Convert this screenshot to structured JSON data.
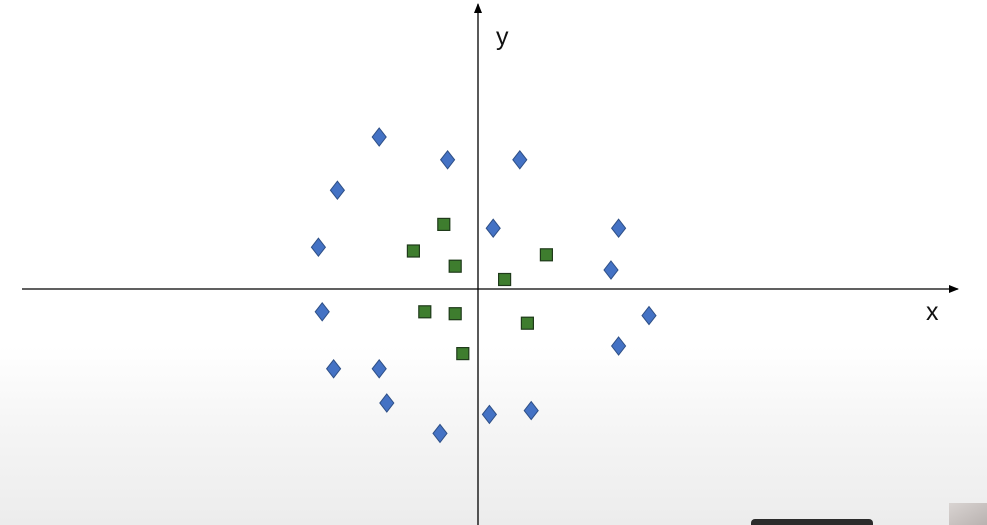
{
  "chart_data": {
    "type": "scatter",
    "title": "",
    "xlabel": "x",
    "ylabel": "y",
    "xlim": [
      -11.8,
      12.3
    ],
    "ylim": [
      -6.0,
      7.5
    ],
    "grid": false,
    "legend": "none",
    "series": [
      {
        "marker": "diamond",
        "color": "#4472C4",
        "points": [
          [
            -2.6,
            4.0
          ],
          [
            -0.8,
            3.4
          ],
          [
            1.1,
            3.4
          ],
          [
            -3.7,
            2.6
          ],
          [
            -4.2,
            1.1
          ],
          [
            0.4,
            1.6
          ],
          [
            3.7,
            1.6
          ],
          [
            3.5,
            0.5
          ],
          [
            -4.1,
            -0.6
          ],
          [
            4.5,
            -0.7
          ],
          [
            3.7,
            -1.5
          ],
          [
            -3.8,
            -2.1
          ],
          [
            -2.6,
            -2.1
          ],
          [
            -2.4,
            -3.0
          ],
          [
            0.3,
            -3.3
          ],
          [
            1.4,
            -3.2
          ],
          [
            -1.0,
            -3.8
          ]
        ]
      },
      {
        "marker": "square",
        "color": "#3E7D2E",
        "points": [
          [
            -0.9,
            1.7
          ],
          [
            -1.7,
            1.0
          ],
          [
            -0.6,
            0.6
          ],
          [
            1.8,
            0.9
          ],
          [
            0.7,
            0.25
          ],
          [
            -1.4,
            -0.6
          ],
          [
            -0.6,
            -0.65
          ],
          [
            1.3,
            -0.9
          ],
          [
            -0.4,
            -1.7
          ]
        ]
      }
    ]
  }
}
